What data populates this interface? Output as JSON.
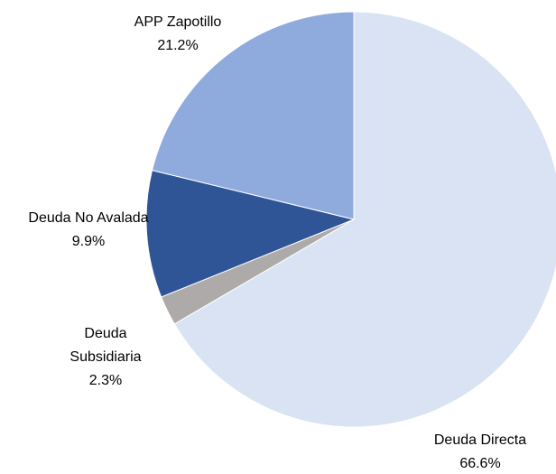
{
  "chart_data": {
    "type": "pie",
    "categories": [
      "Deuda Directa",
      "Deuda Subsidiaria",
      "Deuda No Avalada",
      "APP Zapotillo"
    ],
    "values": [
      66.6,
      2.3,
      9.9,
      21.2
    ],
    "value_labels": [
      "66.6%",
      "2.3%",
      "9.9%",
      "21.2%"
    ],
    "colors": [
      "#dae3f3",
      "#aeaaaa",
      "#2f5597",
      "#8faadc"
    ]
  }
}
